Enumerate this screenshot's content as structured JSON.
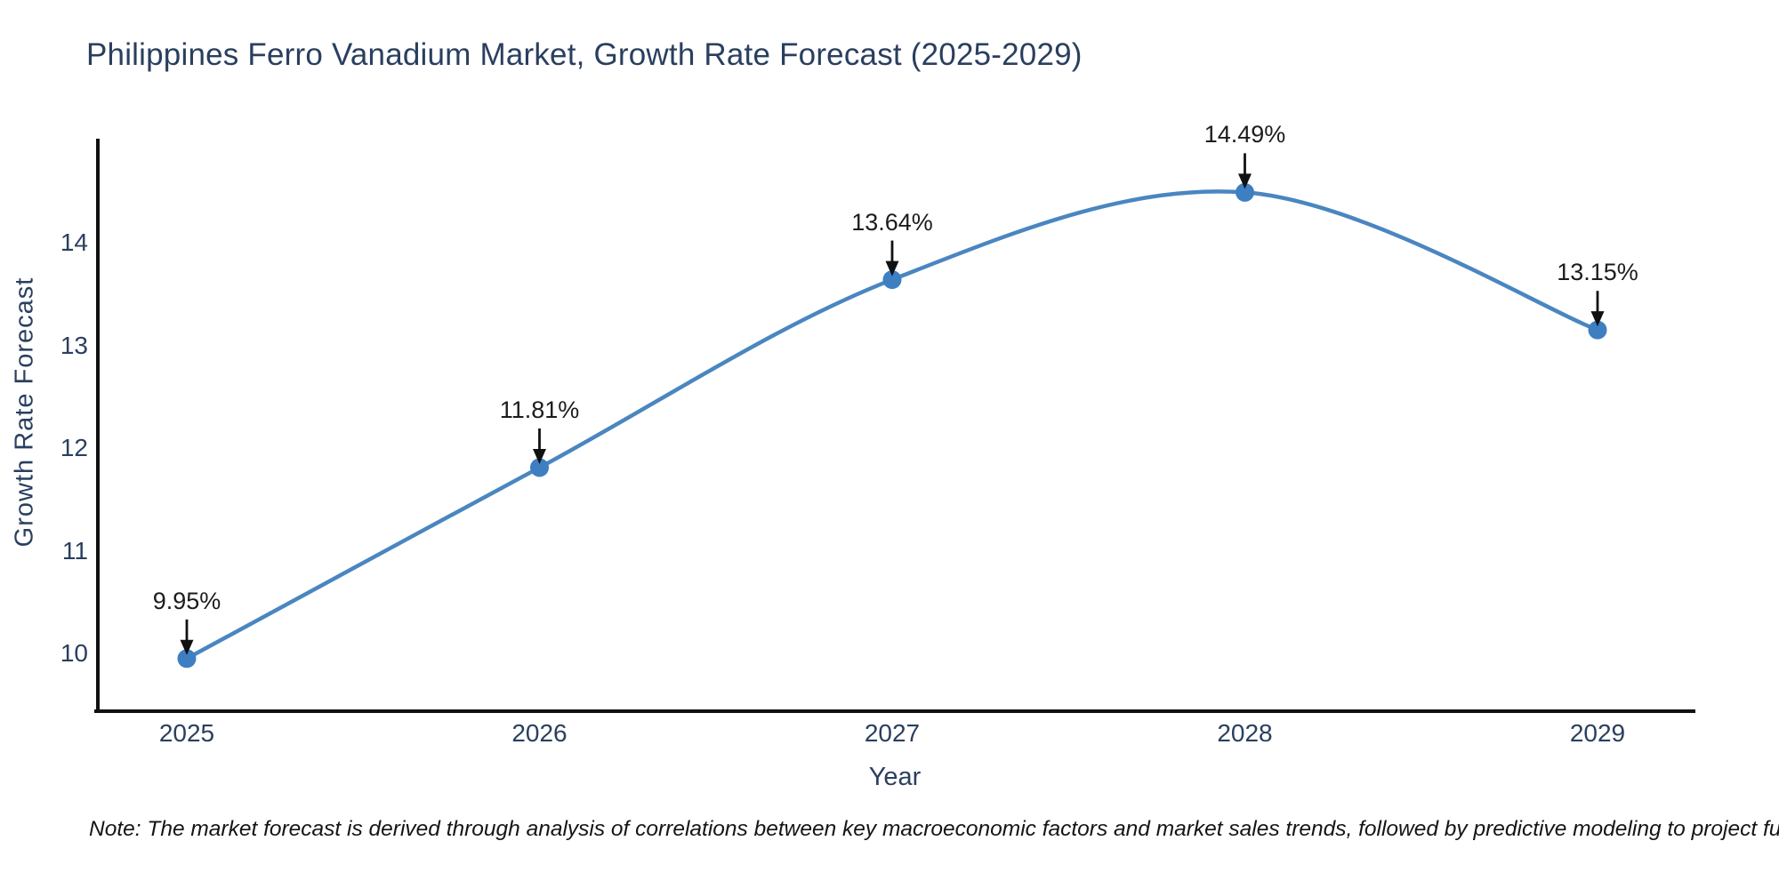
{
  "note": "Note: The market forecast is derived through analysis of correlations between key macroeconomic factors and market sales trends, followed by predictive modeling to project future sales",
  "chart_data": {
    "type": "line",
    "title": "Philippines Ferro Vanadium Market, Growth Rate Forecast (2025-2029)",
    "xlabel": "Year",
    "ylabel": "Growth Rate Forecast",
    "x": [
      2025,
      2026,
      2027,
      2028,
      2029
    ],
    "series": [
      {
        "name": "Growth Rate Forecast",
        "values": [
          9.95,
          11.81,
          13.64,
          14.49,
          13.15
        ]
      }
    ],
    "point_labels": [
      "9.95%",
      "11.81%",
      "13.64%",
      "14.49%",
      "13.15%"
    ],
    "yticks": [
      10,
      11,
      12,
      13,
      14
    ],
    "ylim": [
      9.4,
      15.0
    ],
    "xlim": [
      2024.75,
      2029.27
    ],
    "line_style": "spline",
    "markers": true,
    "annotation_arrows": true,
    "grid": false,
    "legend": "none",
    "colors": {
      "line": "#4a86c0",
      "marker": "#3d7fc1",
      "axis": "#111111",
      "arrow": "#111111",
      "text": "#2a3f5f",
      "annotation_text": "#1c1c1c",
      "background": "#ffffff"
    }
  }
}
